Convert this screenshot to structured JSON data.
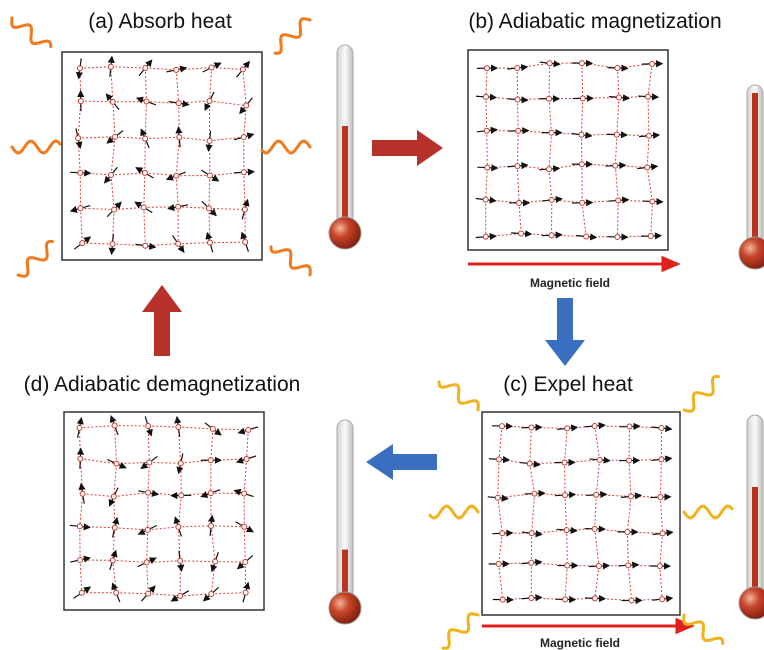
{
  "panels": [
    {
      "title": "(a) Absorb heat"
    },
    {
      "title": "(b) Adiabatic magnetization",
      "field_label": "Magnetic field"
    },
    {
      "title": "(c) Expel heat",
      "field_label": "Magnetic field"
    },
    {
      "title": "(d) Adiabatic demagnetization"
    }
  ]
}
